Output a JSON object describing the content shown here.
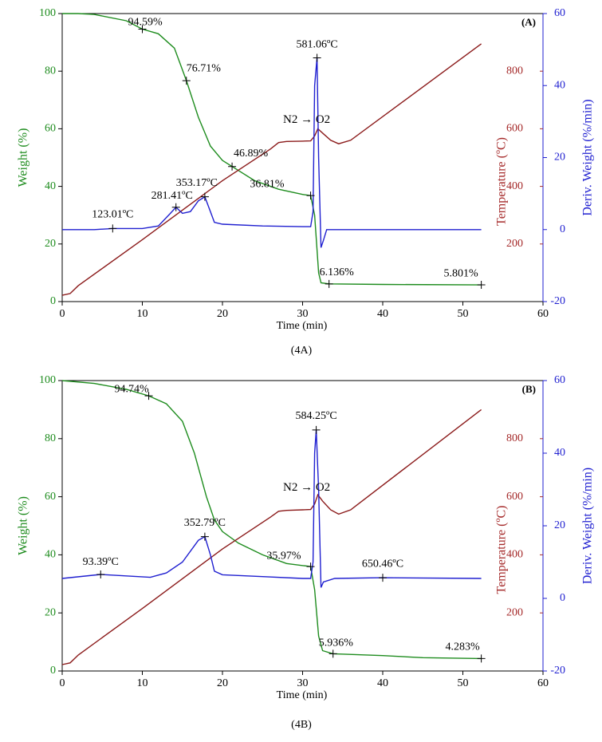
{
  "chart_data": [
    {
      "type": "line",
      "title": "(A)",
      "caption": "(4A)",
      "x_label": "Time (min)",
      "y_label": "Weight (%)",
      "y2_label": "Temperature (ºC)",
      "y3_label": "Deriv. Weight (%/min)",
      "gas_label": "N2 → O2",
      "xlim": [
        0,
        60
      ],
      "xticks": [
        0,
        10,
        20,
        30,
        40,
        50,
        60
      ],
      "ylim": [
        0,
        100
      ],
      "yticks": [
        0,
        20,
        40,
        60,
        80,
        100
      ],
      "y2lim": [
        0,
        1000
      ],
      "y2ticks": [
        200,
        400,
        600,
        800
      ],
      "y3lim": [
        -20,
        60
      ],
      "y3ticks": [
        -20,
        0,
        20,
        40,
        60
      ],
      "series": [
        {
          "color": "#1e8c1e",
          "axis": "y",
          "x": [
            0,
            2,
            4,
            8,
            10,
            12,
            14,
            15.5,
            17,
            18.5,
            20,
            21.2,
            24,
            27,
            30,
            31,
            31.5,
            32,
            32.3,
            33.3,
            40,
            52.3
          ],
          "values": [
            100,
            100,
            99.7,
            97.5,
            94.59,
            93,
            88,
            76.71,
            64,
            54,
            49,
            46.89,
            42,
            39,
            37.2,
            36.81,
            30,
            10,
            6.5,
            6.136,
            5.95,
            5.801
          ]
        },
        {
          "color": "#8b1a1a",
          "axis": "y2",
          "x": [
            0,
            1,
            2,
            10,
            20,
            26,
            27,
            28,
            30,
            31,
            31.5,
            31.9,
            32.5,
            33.5,
            34.5,
            36,
            52.3
          ],
          "values": [
            22,
            28,
            55,
            215,
            420,
            530,
            552,
            556,
            557,
            558,
            575,
            600,
            585,
            560,
            548,
            560,
            895
          ]
        },
        {
          "color": "#1f1fd0",
          "axis": "y3",
          "x": [
            0,
            4,
            6.3,
            10,
            12,
            13.5,
            14.2,
            15,
            16,
            17,
            17.8,
            18.5,
            19,
            20,
            25,
            30,
            31,
            31.3,
            31.5,
            31.8,
            32,
            32.3,
            32.6,
            33,
            35,
            52.3
          ],
          "values": [
            0,
            0,
            0.3,
            0.3,
            1,
            4.5,
            6.2,
            4.5,
            5,
            8,
            9.1,
            5,
            2,
            1.5,
            1,
            0.8,
            0.8,
            5,
            40,
            47.7,
            20,
            -5,
            -3,
            0,
            0,
            0
          ]
        }
      ],
      "annotations": [
        {
          "x": 10,
          "y": 94.59,
          "label": "94.59%",
          "axis": "y"
        },
        {
          "x": 15.5,
          "y": 76.71,
          "label": "76.71%",
          "axis": "y"
        },
        {
          "x": 21.2,
          "y": 46.89,
          "label": "46.89%",
          "axis": "y"
        },
        {
          "x": 31,
          "y": 36.81,
          "label": "36.81%",
          "axis": "y"
        },
        {
          "x": 33.3,
          "y": 6.136,
          "label": "6.136%",
          "axis": "y"
        },
        {
          "x": 52.3,
          "y": 5.801,
          "label": "5.801%",
          "axis": "y"
        },
        {
          "x": 6.3,
          "y": 0.3,
          "label": "123.01ºC",
          "axis": "y3"
        },
        {
          "x": 14.2,
          "y": 6.2,
          "label": "281.41ºC",
          "axis": "y3"
        },
        {
          "x": 17.8,
          "y": 9.1,
          "label": "353.17ºC",
          "axis": "y3"
        },
        {
          "x": 31.8,
          "y": 47.7,
          "label": "581.06ºC",
          "axis": "y3"
        }
      ]
    },
    {
      "type": "line",
      "title": "(B)",
      "caption": "(4B)",
      "x_label": "Time (min)",
      "y_label": "Weight (%)",
      "y2_label": "Temperature (ºC)",
      "y3_label": "Deriv. Weight (%/min)",
      "gas_label": "N2 → O2",
      "xlim": [
        0,
        60
      ],
      "xticks": [
        0,
        10,
        20,
        30,
        40,
        50,
        60
      ],
      "ylim": [
        0,
        100
      ],
      "yticks": [
        0,
        20,
        40,
        60,
        80,
        100
      ],
      "y2lim": [
        0,
        1000
      ],
      "y2ticks": [
        200,
        400,
        600,
        800
      ],
      "y3lim": [
        -20,
        60
      ],
      "y3ticks": [
        -20,
        0,
        20,
        40,
        60
      ],
      "series": [
        {
          "color": "#1e8c1e",
          "axis": "y",
          "x": [
            0,
            4,
            8,
            10.8,
            13,
            15,
            16.5,
            18,
            19,
            20,
            22,
            25,
            28,
            31,
            31.5,
            32,
            32.5,
            33.8,
            40,
            45,
            52.3
          ],
          "values": [
            100,
            99,
            97,
            94.74,
            92,
            86,
            75,
            60,
            52,
            48,
            44,
            40,
            37,
            35.97,
            28,
            12,
            7,
            5.936,
            5.3,
            4.6,
            4.283
          ]
        },
        {
          "color": "#8b1a1a",
          "axis": "y2",
          "x": [
            0,
            1,
            2,
            10,
            20,
            26,
            27,
            28,
            30,
            31,
            31.5,
            31.9,
            32.5,
            33.5,
            34.5,
            36,
            52.3
          ],
          "values": [
            22,
            28,
            55,
            215,
            420,
            530,
            550,
            553,
            555,
            556,
            575,
            607,
            585,
            555,
            540,
            555,
            900
          ]
        },
        {
          "color": "#1f1fd0",
          "axis": "y3",
          "x": [
            0,
            4.8,
            11,
            13,
            15,
            17,
            17.8,
            18.5,
            19,
            20,
            25,
            30,
            31,
            31.3,
            31.5,
            31.7,
            32,
            32.3,
            32.6,
            34,
            40,
            52.3
          ],
          "values": [
            5.5,
            6.6,
            5.8,
            7,
            10,
            16,
            17,
            12,
            7.5,
            6.5,
            6,
            5.5,
            5.5,
            10,
            40,
            46.4,
            30,
            3,
            4.5,
            5.5,
            5.7,
            5.5
          ]
        }
      ],
      "annotations": [
        {
          "x": 10.8,
          "y": 94.74,
          "label": "94.74%",
          "axis": "y"
        },
        {
          "x": 31,
          "y": 35.97,
          "label": "35.97%",
          "axis": "y"
        },
        {
          "x": 33.8,
          "y": 5.936,
          "label": "5.936%",
          "axis": "y"
        },
        {
          "x": 52.3,
          "y": 4.283,
          "label": "4.283%",
          "axis": "y"
        },
        {
          "x": 4.8,
          "y": 6.6,
          "label": "93.39ºC",
          "axis": "y3"
        },
        {
          "x": 17.8,
          "y": 17,
          "label": "352.79ºC",
          "axis": "y3"
        },
        {
          "x": 31.7,
          "y": 46.4,
          "label": "584.25ºC",
          "axis": "y3"
        },
        {
          "x": 40,
          "y": 5.7,
          "label": "650.46ºC",
          "axis": "y3"
        }
      ]
    }
  ]
}
